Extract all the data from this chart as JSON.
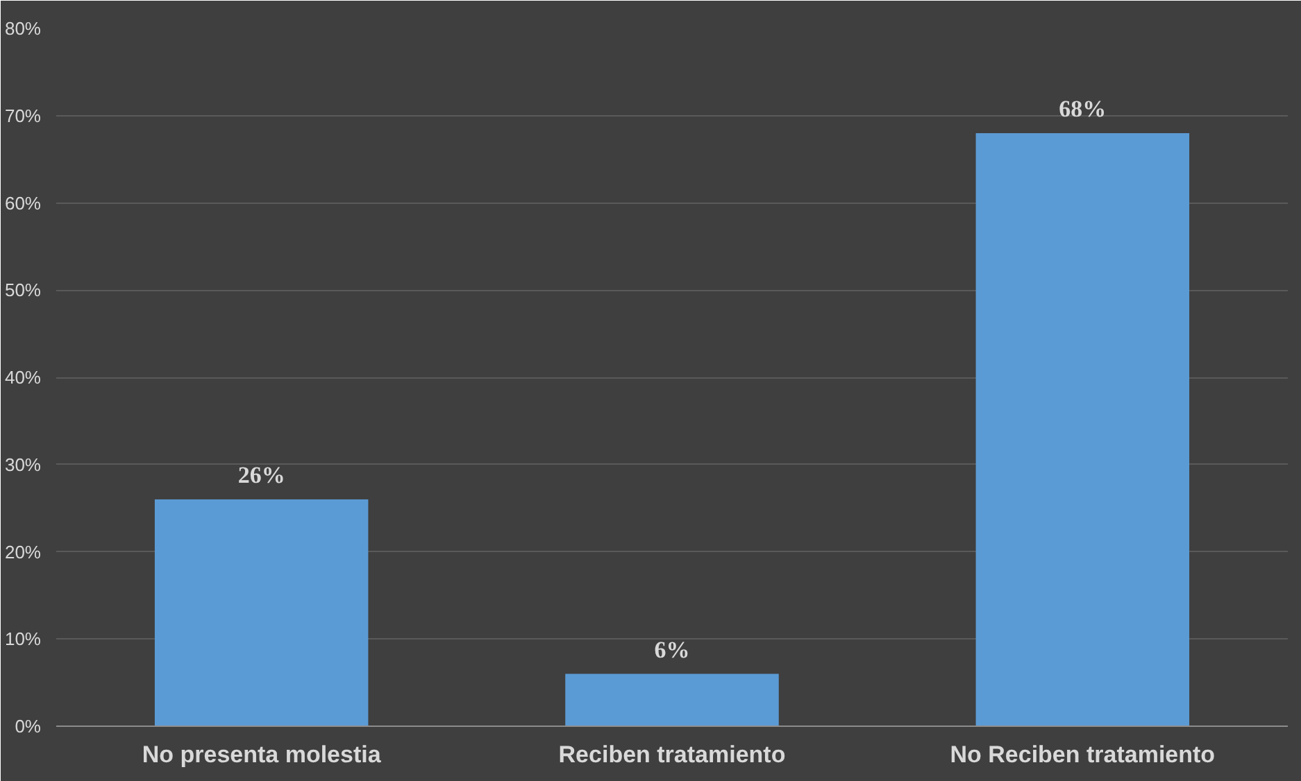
{
  "chart_data": {
    "type": "bar",
    "categories": [
      "No presenta molestia",
      "Reciben tratamiento",
      "No Reciben tratamiento"
    ],
    "values": [
      26,
      6,
      68
    ],
    "value_labels": [
      "26%",
      "6%",
      "68%"
    ],
    "color": "#5b9bd5",
    "ylim": [
      0,
      80
    ],
    "yticks": [
      {
        "value": 0,
        "label": "0%"
      },
      {
        "value": 10,
        "label": "10%"
      },
      {
        "value": 20,
        "label": "20%"
      },
      {
        "value": 30,
        "label": "30%"
      },
      {
        "value": 40,
        "label": "40%"
      },
      {
        "value": 50,
        "label": "50%"
      },
      {
        "value": 60,
        "label": "60%"
      },
      {
        "value": 70,
        "label": "70%"
      },
      {
        "value": 80,
        "label": "80%"
      }
    ],
    "grid": "y"
  }
}
